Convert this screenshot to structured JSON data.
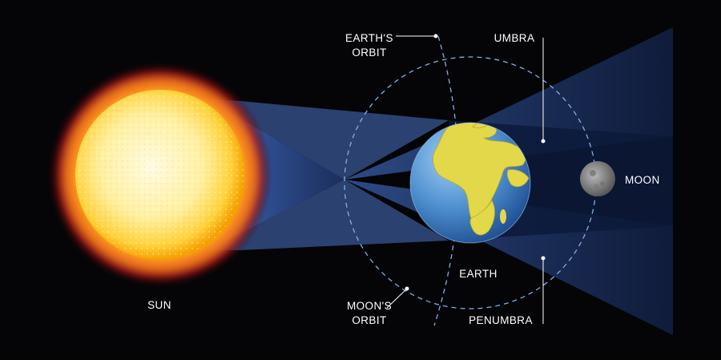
{
  "labels": {
    "sun": "SUN",
    "earth": "EARTH",
    "moon": "MOON",
    "earth_orbit_line1": "EARTH'S",
    "earth_orbit_line2": "ORBIT",
    "moon_orbit_line1": "MOON'S",
    "moon_orbit_line2": "ORBIT",
    "umbra": "UMBRA",
    "penumbra": "PENUMBRA"
  },
  "colors": {
    "background": "#050507",
    "sun_core": "#fff7c8",
    "sun_rim": "#f5a800",
    "sun_corona": "#b0101e",
    "shadow_cone": "#3a63b8",
    "ocean": "#3d7fc4",
    "land": "#e3d84a",
    "moon": "#8a8a8a",
    "orbit_line": "#7faee8",
    "text": "#ffffff"
  }
}
